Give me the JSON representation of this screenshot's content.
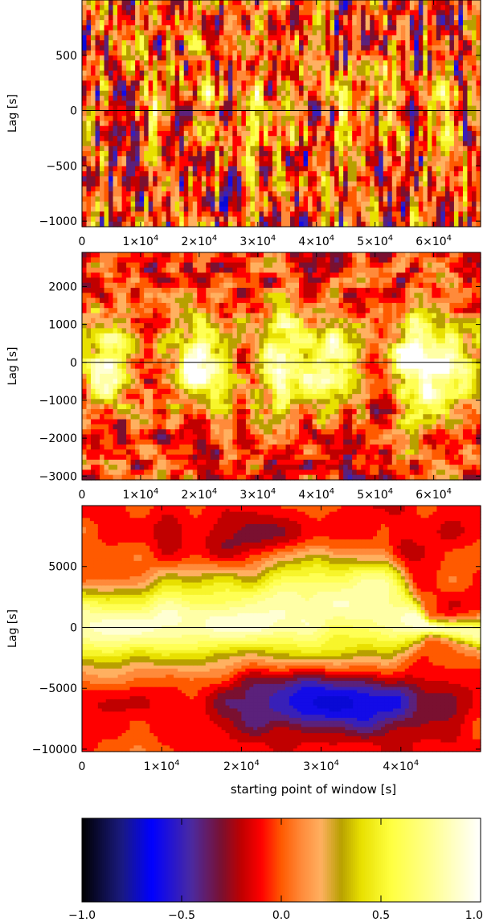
{
  "chart_data": [
    {
      "type": "heatmap",
      "ylabel": "Lag [s]",
      "xlabel": "",
      "xlim": [
        0,
        68000
      ],
      "ylim": [
        -1050,
        1000
      ],
      "x_ticks": [
        0,
        10000,
        20000,
        30000,
        40000,
        50000,
        60000
      ],
      "x_tick_labels": [
        {
          "base": "0",
          "exp": ""
        },
        {
          "base": "1×10",
          "exp": "4"
        },
        {
          "base": "2×10",
          "exp": "4"
        },
        {
          "base": "3×10",
          "exp": "4"
        },
        {
          "base": "4×10",
          "exp": "4"
        },
        {
          "base": "5×10",
          "exp": "4"
        },
        {
          "base": "6×10",
          "exp": "4"
        }
      ],
      "y_ticks": [
        -1000,
        -500,
        0,
        500
      ],
      "y_tick_labels": [
        "−1000",
        "−500",
        "0",
        "500"
      ],
      "zero_line": 0,
      "pattern": "noisy",
      "peaks_x": [
        12000,
        22000,
        29500,
        37000,
        45000,
        53000,
        62000
      ],
      "peak_strength": 0.45,
      "lag_width": 120,
      "grid_cols": 90,
      "grid_rows": 45
    },
    {
      "type": "heatmap",
      "ylabel": "Lag [s]",
      "xlabel": "",
      "xlim": [
        0,
        68000
      ],
      "ylim": [
        -3100,
        2900
      ],
      "x_ticks": [
        0,
        10000,
        20000,
        30000,
        40000,
        50000,
        60000
      ],
      "x_tick_labels": [
        {
          "base": "0",
          "exp": ""
        },
        {
          "base": "1×10",
          "exp": "4"
        },
        {
          "base": "2×10",
          "exp": "4"
        },
        {
          "base": "3×10",
          "exp": "4"
        },
        {
          "base": "4×10",
          "exp": "4"
        },
        {
          "base": "5×10",
          "exp": "4"
        },
        {
          "base": "6×10",
          "exp": "4"
        }
      ],
      "y_ticks": [
        -3000,
        -2000,
        -1000,
        0,
        1000,
        2000
      ],
      "y_tick_labels": [
        "−3000",
        "−2000",
        "−1000",
        "0",
        "1000",
        "2000"
      ],
      "zero_line": 0,
      "pattern": "blobs",
      "peaks_x": [
        4500,
        20000,
        33000,
        41500,
        56500,
        62500
      ],
      "peak_strength": 0.9,
      "lag_width": 900,
      "grid_cols": 90,
      "grid_rows": 45
    },
    {
      "type": "heatmap",
      "ylabel": "Lag [s]",
      "xlabel": "starting point of window [s]",
      "xlim": [
        0,
        50000
      ],
      "ylim": [
        -10200,
        10000
      ],
      "x_ticks": [
        0,
        10000,
        20000,
        30000,
        40000
      ],
      "x_tick_labels": [
        {
          "base": "0",
          "exp": ""
        },
        {
          "base": "1×10",
          "exp": "4"
        },
        {
          "base": "2×10",
          "exp": "4"
        },
        {
          "base": "3×10",
          "exp": "4"
        },
        {
          "base": "4×10",
          "exp": "4"
        }
      ],
      "y_ticks": [
        -10000,
        -5000,
        0,
        5000
      ],
      "y_tick_labels": [
        "−10000",
        "−5000",
        "0",
        "5000"
      ],
      "zero_line": 0,
      "pattern": "smooth",
      "band_center": [
        [
          0,
          0
        ],
        [
          10000,
          300
        ],
        [
          20000,
          800
        ],
        [
          30000,
          2000
        ],
        [
          38000,
          1800
        ],
        [
          43500,
          0
        ],
        [
          50000,
          -500
        ]
      ],
      "band_width": [
        [
          0,
          2200
        ],
        [
          20000,
          2500
        ],
        [
          30000,
          3500
        ],
        [
          38000,
          3200
        ],
        [
          43500,
          400
        ],
        [
          50000,
          800
        ]
      ],
      "trough": {
        "x": 31000,
        "y": -6000,
        "sx": 9000,
        "sy": 1800,
        "depth": -0.75
      },
      "secondary_trough": {
        "x": 27000,
        "y": 7200,
        "sx": 9000,
        "sy": 1500,
        "depth": -0.3
      },
      "grid_cols": 100,
      "grid_rows": 80
    }
  ],
  "colorbar": {
    "range": [
      -1.0,
      1.0
    ],
    "ticks": [
      -1.0,
      -0.5,
      0.0,
      0.5,
      1.0
    ],
    "tick_labels": [
      "−1.0",
      "−0.5",
      "0.0",
      "0.5",
      "1.0"
    ],
    "colors": [
      {
        "v": -1.0,
        "c": "#000000"
      },
      {
        "v": -0.8,
        "c": "#1a1a80"
      },
      {
        "v": -0.65,
        "c": "#0000ff"
      },
      {
        "v": -0.45,
        "c": "#4b2aa0"
      },
      {
        "v": -0.3,
        "c": "#7a1030"
      },
      {
        "v": -0.2,
        "c": "#c00000"
      },
      {
        "v": -0.1,
        "c": "#ff0000"
      },
      {
        "v": 0.0,
        "c": "#ff5a00"
      },
      {
        "v": 0.1,
        "c": "#ff8a3a"
      },
      {
        "v": 0.2,
        "c": "#ffb060"
      },
      {
        "v": 0.3,
        "c": "#b8a000"
      },
      {
        "v": 0.4,
        "c": "#e8e000"
      },
      {
        "v": 0.55,
        "c": "#ffff40"
      },
      {
        "v": 0.75,
        "c": "#ffff90"
      },
      {
        "v": 1.0,
        "c": "#ffffff"
      }
    ]
  }
}
